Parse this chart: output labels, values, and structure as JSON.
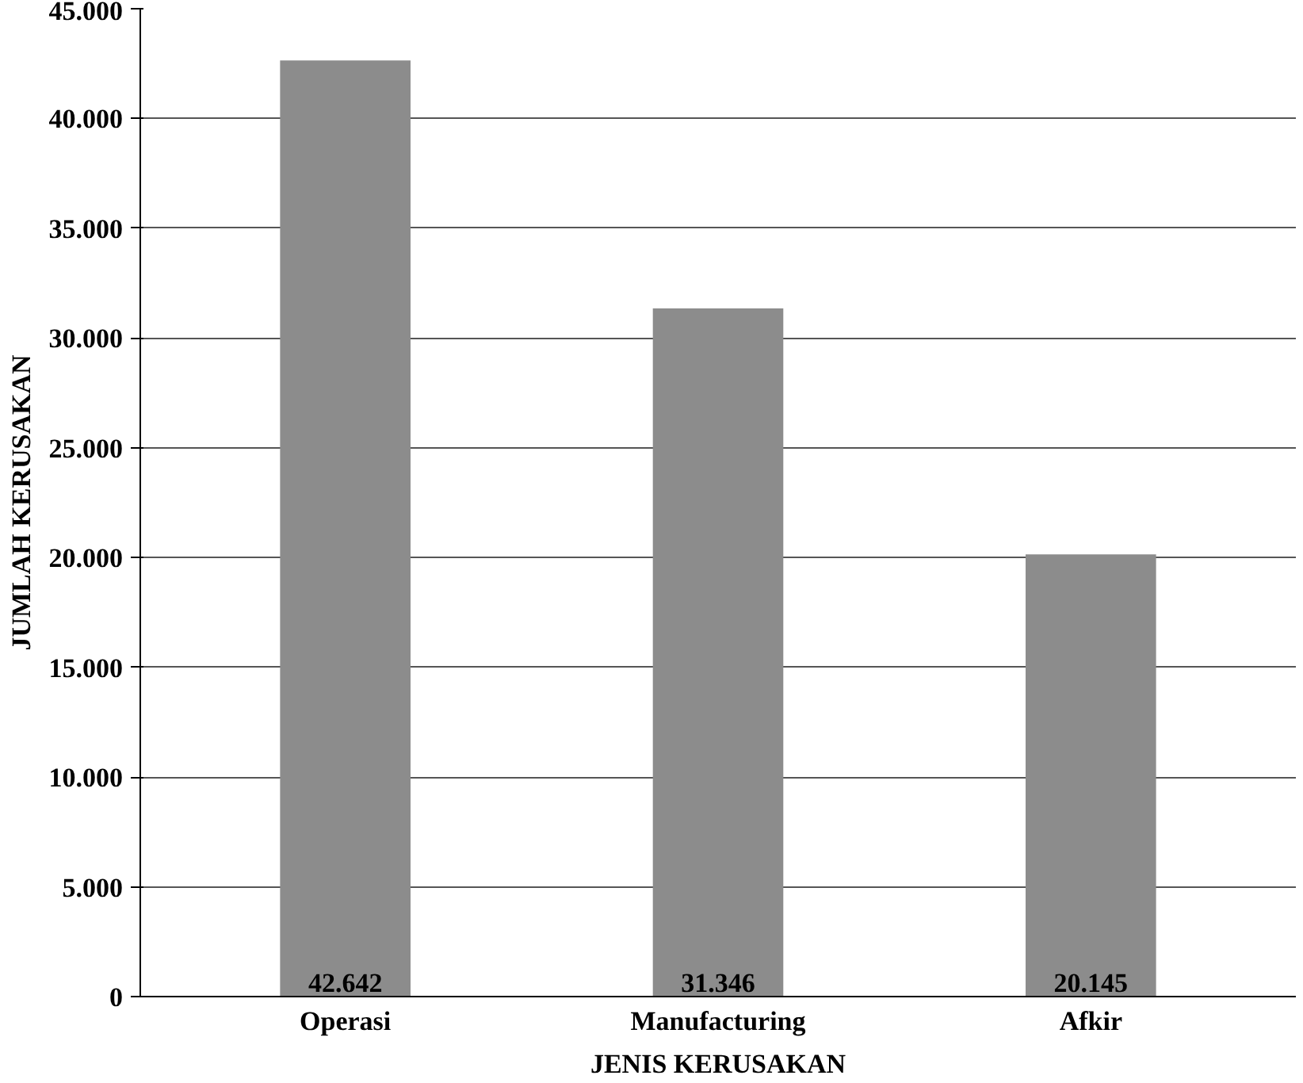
{
  "chart_data": {
    "type": "bar",
    "xlabel": "JENIS KERUSAKAN",
    "ylabel": "JUMLAH KERUSAKAN",
    "categories": [
      "Operasi",
      "Manufacturing",
      "Afkir"
    ],
    "values": [
      42642,
      31346,
      20145
    ],
    "value_labels": [
      "42.642",
      "31.346",
      "20.145"
    ],
    "color": "#8c8c8c",
    "ylim": [
      0,
      45000
    ],
    "yticks": [
      {
        "value": 0,
        "label": "0"
      },
      {
        "value": 5000,
        "label": "5.000"
      },
      {
        "value": 10000,
        "label": "10.000"
      },
      {
        "value": 15000,
        "label": "15.000"
      },
      {
        "value": 20000,
        "label": "20.000"
      },
      {
        "value": 25000,
        "label": "25.000"
      },
      {
        "value": 30000,
        "label": "30.000"
      },
      {
        "value": 35000,
        "label": "35.000"
      },
      {
        "value": 40000,
        "label": "40.000"
      },
      {
        "value": 45000,
        "label": "45.000"
      }
    ],
    "grid": "y"
  }
}
